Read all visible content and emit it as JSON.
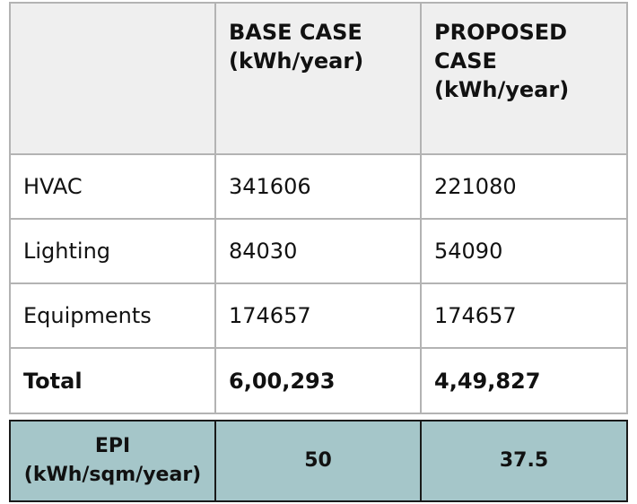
{
  "energy_table": {
    "header": {
      "corner": "",
      "base_case": [
        "BASE CASE",
        "(kWh/year)"
      ],
      "proposed_case": [
        "PROPOSED",
        "CASE",
        "(kWh/year)"
      ]
    },
    "rows": [
      {
        "label": "HVAC",
        "base": "341606",
        "proposed": "221080"
      },
      {
        "label": "Lighting",
        "base": "84030",
        "proposed": "54090"
      },
      {
        "label": "Equipments",
        "base": "174657",
        "proposed": "174657"
      }
    ],
    "total": {
      "label": "Total",
      "base": "6,00,293",
      "proposed": "4,49,827"
    }
  },
  "epi_table": {
    "label": [
      "EPI",
      "(kWh/sqm/year)"
    ],
    "base": "50",
    "proposed": "37.5"
  },
  "colors": {
    "header_bg": "#efefef",
    "border": "#b3b3b3",
    "epi_bg": "#a5c6c9",
    "epi_border": "#1a1a1a"
  }
}
